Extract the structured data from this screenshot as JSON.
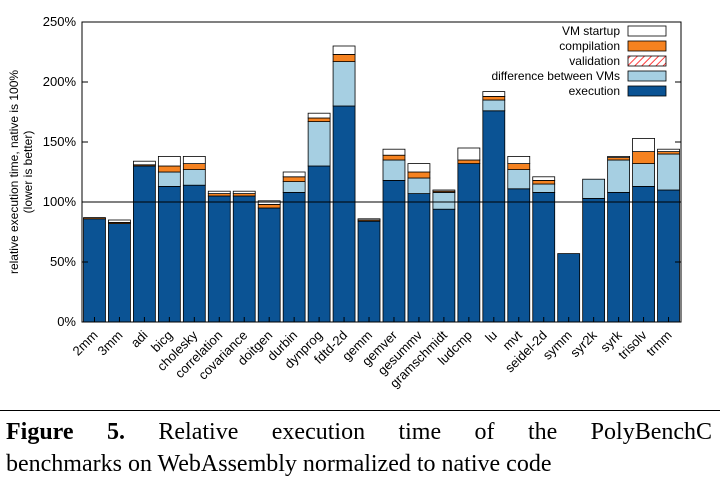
{
  "chart_data": {
    "type": "bar",
    "stacked": true,
    "title": "",
    "xlabel": "",
    "ylabel": [
      "relative execution time, native is 100%",
      "(lower is better)"
    ],
    "ylim": [
      0,
      250
    ],
    "yticks": [
      "0%",
      "50%",
      "100%",
      "150%",
      "200%",
      "250%"
    ],
    "reference_line": 100,
    "legend_position": "top-right",
    "categories": [
      "2mm",
      "3mm",
      "adi",
      "bicg",
      "cholesky",
      "correlation",
      "covariance",
      "doitgen",
      "durbin",
      "dynprog",
      "fdtd-2d",
      "gemm",
      "gemver",
      "gesummv",
      "gramschmidt",
      "ludcmp",
      "lu",
      "mvt",
      "seidel-2d",
      "symm",
      "syr2k",
      "syrk",
      "trisolv",
      "trmm"
    ],
    "series": [
      {
        "name": "execution",
        "color": "#0b5394",
        "pattern": "solid",
        "values": [
          86,
          82,
          130,
          113,
          114,
          105,
          105,
          95,
          108,
          130,
          180,
          84,
          118,
          107,
          94,
          132,
          176,
          111,
          108,
          57,
          103,
          108,
          113,
          110
        ]
      },
      {
        "name": "difference between VMs",
        "color": "#a6cfe2",
        "pattern": "solid",
        "values": [
          0,
          0,
          0,
          12,
          13,
          0,
          0,
          0,
          9,
          37,
          37,
          0,
          17,
          13,
          14,
          0,
          9,
          16,
          7,
          0,
          16,
          27,
          19,
          30
        ]
      },
      {
        "name": "validation",
        "color": "#ff0000",
        "pattern": "hatch",
        "values": [
          0,
          0,
          0,
          0,
          0,
          0,
          0,
          0,
          0,
          0,
          0,
          0,
          0,
          0,
          0,
          0,
          0,
          0,
          0,
          0,
          0,
          0,
          0,
          0
        ]
      },
      {
        "name": "compilation",
        "color": "#f58220",
        "pattern": "solid",
        "values": [
          1,
          1,
          1,
          5,
          5,
          2,
          2,
          3,
          4,
          3,
          6,
          1,
          4,
          5,
          1,
          3,
          3,
          5,
          3,
          0,
          0,
          2,
          10,
          2
        ]
      },
      {
        "name": "VM startup",
        "color": "#ffffff",
        "pattern": "solid",
        "values": [
          0,
          2,
          3,
          8,
          6,
          2,
          2,
          3,
          4,
          4,
          7,
          1,
          5,
          7,
          1,
          10,
          4,
          6,
          3,
          0,
          0,
          1,
          11,
          2
        ]
      }
    ],
    "legend_order": [
      "VM startup",
      "compilation",
      "validation",
      "difference between VMs",
      "execution"
    ]
  },
  "caption": {
    "label": "Figure 5.",
    "line1": "Relative execution time of the PolyBenchC",
    "line2": "benchmarks on WebAssembly normalized to native code"
  }
}
